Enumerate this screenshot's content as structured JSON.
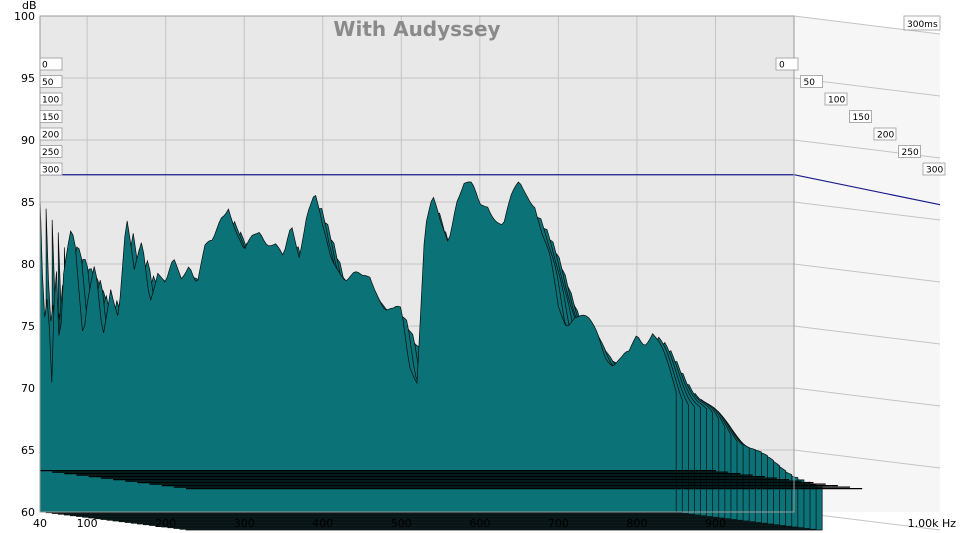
{
  "colors": {
    "background": "#ffffff",
    "plot_background": "#e8e8e8",
    "grid": "#c4c4c4",
    "waterfall_fill": "#0b7378",
    "waterfall_edge": "#0a0a0a",
    "reference_line": "#1a1a8c",
    "title": "#8a8a8a"
  },
  "chart_data": {
    "type": "area",
    "title": "With Audyssey",
    "ylabel": "dB",
    "xlabel": "Hz",
    "xlim": [
      40,
      1000
    ],
    "ylim": [
      60,
      100
    ],
    "x_tick_labels": [
      "40",
      "100",
      "200",
      "300",
      "400",
      "500",
      "600",
      "700",
      "800",
      "900",
      "1.00k Hz"
    ],
    "y_tick_labels": [
      "60",
      "65",
      "70",
      "75",
      "80",
      "85",
      "90",
      "95",
      "100"
    ],
    "x_ticks": [
      40,
      100,
      200,
      300,
      400,
      500,
      600,
      700,
      800,
      900,
      1000
    ],
    "y_ticks": [
      60,
      65,
      70,
      75,
      80,
      85,
      90,
      95,
      100
    ],
    "time_axis_label": "300ms",
    "time_slice_labels": [
      "0",
      "50",
      "100",
      "150",
      "200",
      "250",
      "300"
    ],
    "reference_level_db": 87.2,
    "grid": true,
    "series": [
      {
        "slice_ms": 0,
        "x": [
          40,
          45,
          50,
          55,
          60,
          65,
          70,
          75,
          80,
          85,
          90,
          95,
          100,
          110,
          120,
          130,
          140,
          150,
          160,
          170,
          180,
          190,
          200,
          210,
          220,
          230,
          240,
          250,
          260,
          270,
          280,
          290,
          300,
          310,
          320,
          330,
          340,
          350,
          360,
          370,
          380,
          390,
          400,
          410,
          420,
          430,
          440,
          450,
          460,
          470,
          480,
          490,
          500,
          510,
          520,
          530,
          540,
          550,
          560,
          570,
          580,
          590,
          600,
          610,
          620,
          630,
          640,
          650,
          660,
          670,
          680,
          690,
          700,
          710,
          720,
          730,
          740,
          750,
          760,
          770,
          780,
          790,
          800,
          810,
          820,
          830,
          840,
          850
        ],
        "y": [
          86.0,
          75.5,
          77.5,
          70.0,
          80.5,
          72.0,
          79.0,
          81.5,
          83.5,
          82.0,
          78.0,
          74.0,
          76.5,
          79.5,
          74.0,
          78.5,
          76.0,
          83.5,
          79.0,
          82.0,
          77.5,
          79.5,
          78.0,
          80.0,
          79.0,
          80.5,
          78.5,
          81.0,
          81.5,
          84.0,
          85.0,
          82.5,
          80.5,
          82.0,
          83.0,
          82.0,
          81.5,
          80.0,
          83.0,
          81.0,
          84.5,
          85.5,
          82.5,
          80.5,
          80.0,
          79.0,
          79.0,
          78.5,
          79.0,
          78.0,
          76.5,
          76.0,
          76.0,
          72.0,
          71.0,
          83.0,
          85.0,
          83.0,
          82.0,
          85.5,
          86.5,
          86.0,
          84.5,
          85.0,
          84.0,
          83.0,
          85.0,
          86.5,
          86.0,
          85.0,
          82.0,
          80.0,
          76.5,
          75.5,
          76.0,
          75.5,
          75.0,
          74.5,
          73.0,
          72.0,
          72.0,
          72.5,
          74.5,
          74.0,
          74.5,
          73.0,
          71.5,
          70.0
        ]
      },
      {
        "slice_ms": 300,
        "x": [
          40,
          100,
          200,
          300,
          400,
          500,
          600,
          700,
          800,
          900,
          1000
        ],
        "y": [
          63.5,
          63.5,
          63.5,
          63.5,
          63.5,
          63.5,
          63.5,
          63.5,
          63.5,
          63.5,
          63.5
        ]
      }
    ]
  }
}
